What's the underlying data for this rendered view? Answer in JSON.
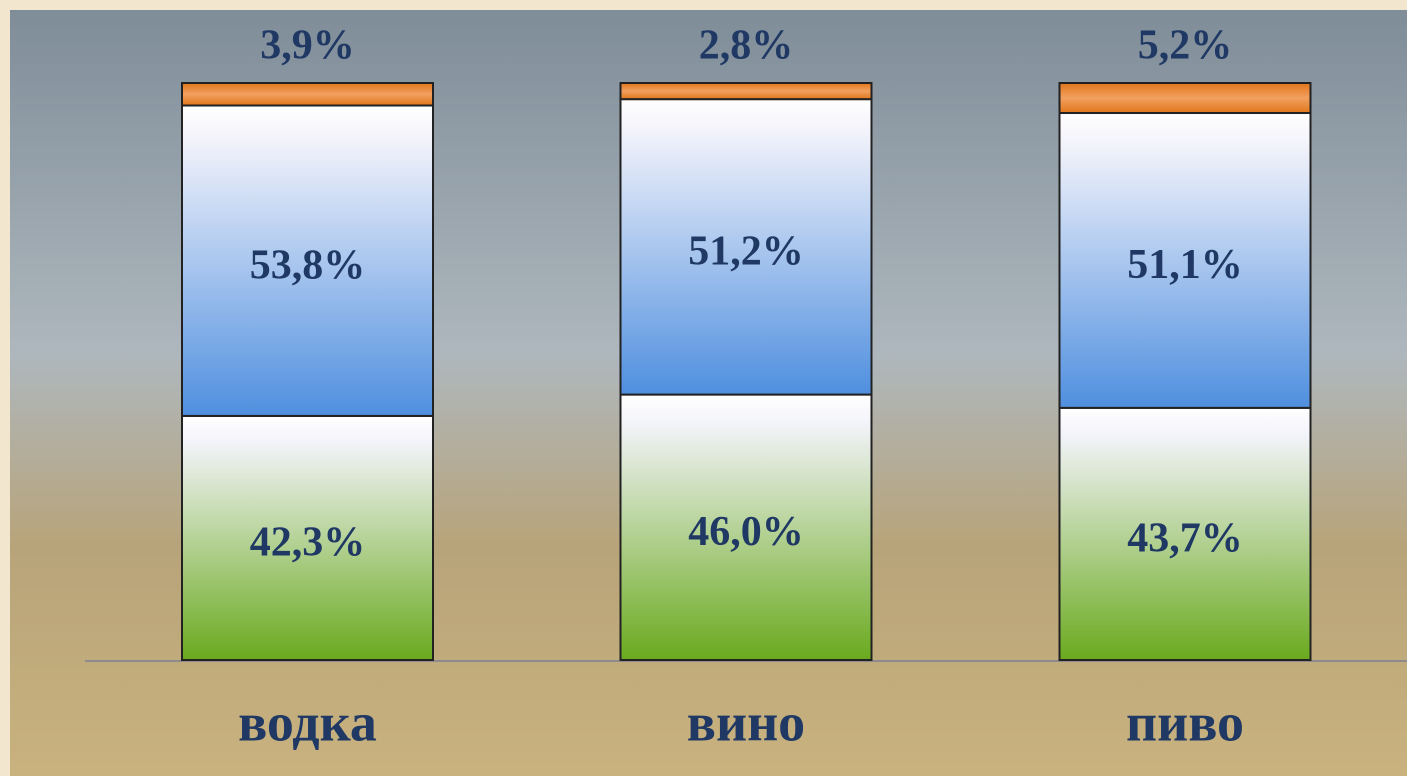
{
  "chart_data": {
    "type": "stacked-bar",
    "categories": [
      "водка",
      "вино",
      "пиво"
    ],
    "ylim": [
      0,
      100
    ],
    "series": [
      {
        "color": "#6aaa1e",
        "values": [
          42.3,
          46.0,
          43.7
        ],
        "value_labels": [
          "42,3%",
          "46,0%",
          "43,7%"
        ]
      },
      {
        "color": "#4f8fdf",
        "values": [
          53.8,
          51.2,
          51.1
        ],
        "value_labels": [
          "53,8%",
          "51,2%",
          "51,1%"
        ]
      },
      {
        "color": "#e0761a",
        "values": [
          3.9,
          2.8,
          5.2
        ],
        "value_labels": [
          "3,9%",
          "2,8%",
          "5,2%"
        ]
      }
    ]
  }
}
